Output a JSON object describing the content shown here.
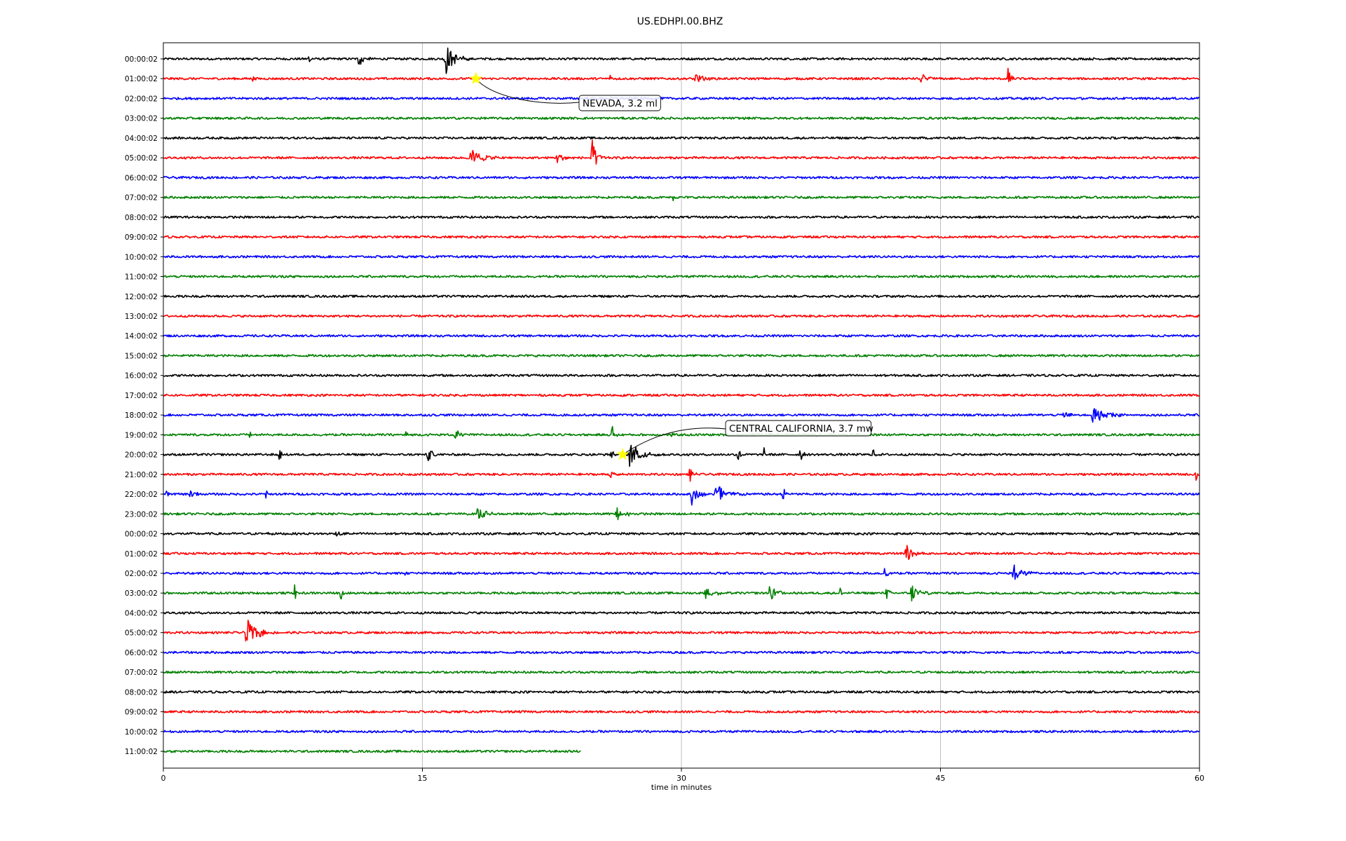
{
  "chart_data": {
    "type": "line",
    "title": "US.EDHPI.00.BHZ",
    "xlabel": "time in minutes",
    "ylabel": "",
    "xlim": [
      0,
      60
    ],
    "x_ticks": [
      0,
      15,
      30,
      45,
      60
    ],
    "grid": "vertical",
    "row_labels": [
      "00:00:02",
      "01:00:02",
      "02:00:02",
      "03:00:02",
      "04:00:02",
      "05:00:02",
      "06:00:02",
      "07:00:02",
      "08:00:02",
      "09:00:02",
      "10:00:02",
      "11:00:02",
      "12:00:02",
      "13:00:02",
      "14:00:02",
      "15:00:02",
      "16:00:02",
      "17:00:02",
      "18:00:02",
      "19:00:02",
      "20:00:02",
      "21:00:02",
      "22:00:02",
      "23:00:02",
      "00:00:02",
      "01:00:02",
      "02:00:02",
      "03:00:02",
      "04:00:02",
      "05:00:02",
      "06:00:02",
      "07:00:02",
      "08:00:02",
      "09:00:02",
      "10:00:02",
      "11:00:02"
    ],
    "colors": [
      "#000000",
      "#ff0000",
      "#0000ff",
      "#008000"
    ],
    "last_row_end_minute": 24.2,
    "noise_amplitude": 0.055,
    "events": [
      {
        "row": 0,
        "t": 8.4,
        "amp": 0.25,
        "dur": 0.4
      },
      {
        "row": 0,
        "t": 11.3,
        "amp": 0.5,
        "dur": 0.8
      },
      {
        "row": 0,
        "t": 16.3,
        "amp": 0.9,
        "dur": 1.4
      },
      {
        "row": 0,
        "t": 18.6,
        "amp": 0.35,
        "dur": 0.2
      },
      {
        "row": 1,
        "t": 5.2,
        "amp": 0.2,
        "dur": 0.2
      },
      {
        "row": 1,
        "t": 25.9,
        "amp": 0.3,
        "dur": 0.5
      },
      {
        "row": 1,
        "t": 30.8,
        "amp": 0.35,
        "dur": 1.0
      },
      {
        "row": 1,
        "t": 43.8,
        "amp": 0.3,
        "dur": 1.0
      },
      {
        "row": 1,
        "t": 48.9,
        "amp": 0.7,
        "dur": 0.4
      },
      {
        "row": 5,
        "t": 17.8,
        "amp": 0.45,
        "dur": 2.2
      },
      {
        "row": 5,
        "t": 22.8,
        "amp": 0.3,
        "dur": 1.0
      },
      {
        "row": 5,
        "t": 24.8,
        "amp": 1.0,
        "dur": 0.8
      },
      {
        "row": 7,
        "t": 29.5,
        "amp": 0.15,
        "dur": 0.3
      },
      {
        "row": 18,
        "t": 52.1,
        "amp": 0.25,
        "dur": 0.8
      },
      {
        "row": 18,
        "t": 53.8,
        "amp": 0.5,
        "dur": 2.0
      },
      {
        "row": 19,
        "t": 5.0,
        "amp": 0.25,
        "dur": 0.2
      },
      {
        "row": 19,
        "t": 14.0,
        "amp": 0.5,
        "dur": 0.2
      },
      {
        "row": 19,
        "t": 16.9,
        "amp": 0.55,
        "dur": 0.6
      },
      {
        "row": 19,
        "t": 26.0,
        "amp": 0.55,
        "dur": 0.4
      },
      {
        "row": 19,
        "t": 29.4,
        "amp": 0.2,
        "dur": 0.2
      },
      {
        "row": 20,
        "t": 6.7,
        "amp": 0.5,
        "dur": 0.3
      },
      {
        "row": 20,
        "t": 15.3,
        "amp": 0.55,
        "dur": 0.6
      },
      {
        "row": 20,
        "t": 25.9,
        "amp": 0.45,
        "dur": 0.3
      },
      {
        "row": 20,
        "t": 27.0,
        "amp": 0.65,
        "dur": 1.8
      },
      {
        "row": 20,
        "t": 33.3,
        "amp": 0.5,
        "dur": 0.3
      },
      {
        "row": 20,
        "t": 34.8,
        "amp": 0.5,
        "dur": 0.2
      },
      {
        "row": 20,
        "t": 36.9,
        "amp": 0.55,
        "dur": 0.3
      },
      {
        "row": 20,
        "t": 41.1,
        "amp": 0.55,
        "dur": 0.2
      },
      {
        "row": 21,
        "t": 25.9,
        "amp": 0.3,
        "dur": 0.5
      },
      {
        "row": 21,
        "t": 30.5,
        "amp": 0.55,
        "dur": 0.4
      },
      {
        "row": 21,
        "t": 59.8,
        "amp": 0.45,
        "dur": 0.3
      },
      {
        "row": 22,
        "t": 0.2,
        "amp": 0.3,
        "dur": 0.3
      },
      {
        "row": 22,
        "t": 1.5,
        "amp": 0.45,
        "dur": 1.0
      },
      {
        "row": 22,
        "t": 5.9,
        "amp": 0.4,
        "dur": 0.3
      },
      {
        "row": 22,
        "t": 30.6,
        "amp": 0.55,
        "dur": 1.0
      },
      {
        "row": 22,
        "t": 32.0,
        "amp": 0.6,
        "dur": 1.8
      },
      {
        "row": 22,
        "t": 35.9,
        "amp": 0.4,
        "dur": 0.5
      },
      {
        "row": 23,
        "t": 18.2,
        "amp": 0.55,
        "dur": 0.9
      },
      {
        "row": 23,
        "t": 26.2,
        "amp": 0.35,
        "dur": 1.2
      },
      {
        "row": 24,
        "t": 6.1,
        "amp": 0.25,
        "dur": 0.4
      },
      {
        "row": 24,
        "t": 10.0,
        "amp": 0.3,
        "dur": 0.9
      },
      {
        "row": 25,
        "t": 43.0,
        "amp": 0.55,
        "dur": 1.2
      },
      {
        "row": 26,
        "t": 4.6,
        "amp": 0.15,
        "dur": 0.2
      },
      {
        "row": 26,
        "t": 14.0,
        "amp": 0.2,
        "dur": 0.2
      },
      {
        "row": 26,
        "t": 41.8,
        "amp": 0.45,
        "dur": 0.3
      },
      {
        "row": 26,
        "t": 49.2,
        "amp": 0.5,
        "dur": 1.4
      },
      {
        "row": 27,
        "t": 7.6,
        "amp": 0.55,
        "dur": 0.2
      },
      {
        "row": 27,
        "t": 10.3,
        "amp": 0.45,
        "dur": 0.3
      },
      {
        "row": 27,
        "t": 31.4,
        "amp": 0.4,
        "dur": 1.2
      },
      {
        "row": 27,
        "t": 35.1,
        "amp": 0.4,
        "dur": 1.4
      },
      {
        "row": 27,
        "t": 39.2,
        "amp": 0.5,
        "dur": 0.2
      },
      {
        "row": 27,
        "t": 41.9,
        "amp": 0.45,
        "dur": 0.3
      },
      {
        "row": 27,
        "t": 43.3,
        "amp": 0.55,
        "dur": 1.2
      },
      {
        "row": 29,
        "t": 4.8,
        "amp": 0.75,
        "dur": 1.6
      },
      {
        "row": 30,
        "t": 42.1,
        "amp": 0.1,
        "dur": 0.2
      }
    ],
    "annotations": [
      {
        "label": "NEVADA, 3.2 ml",
        "row": 1,
        "minute": 18.1,
        "marker": "star",
        "marker_color": "#ffff00"
      },
      {
        "label": "CENTRAL CALIFORNIA, 3.7 mw",
        "row": 20,
        "minute": 26.6,
        "marker": "star",
        "marker_color": "#ffff00"
      }
    ]
  }
}
